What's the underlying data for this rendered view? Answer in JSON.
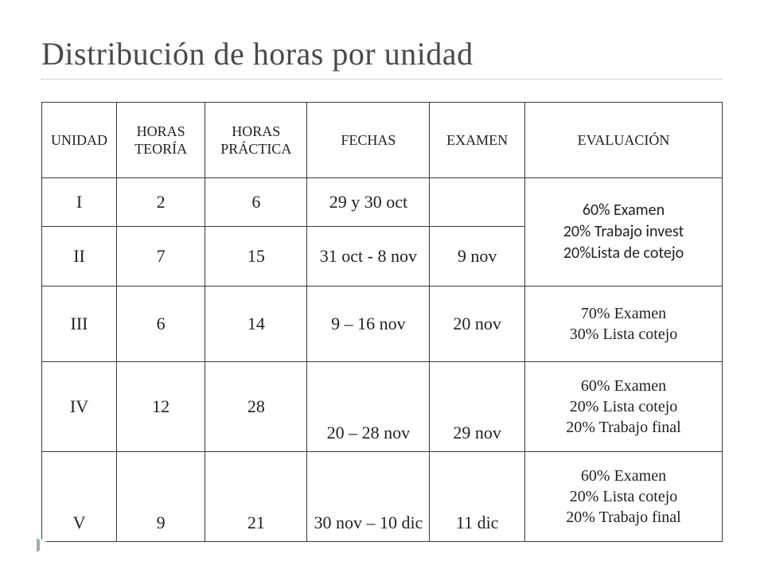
{
  "colors": {
    "text": "#4a4a4a",
    "cell_text": "#222222",
    "border": "#3a3a3a",
    "rule": "#a8a8a8",
    "arrow": "#9bb0b5",
    "background": "#ffffff"
  },
  "typography": {
    "title_fontsize_pt": 30,
    "header_fontsize_pt": 14,
    "body_fontsize_pt": 17,
    "eval_fontsize_pt": 15,
    "title_family": "Georgia serif",
    "alt_family": "Calibri sans-serif"
  },
  "title": "Distribución de horas por unidad",
  "table": {
    "columns": [
      "UNIDAD",
      "HORAS TEORÍA",
      "HORAS PRÁCTICA",
      "FECHAS",
      "EXAMEN",
      "EVALUACIÓN"
    ],
    "col_widths_pct": [
      11,
      13,
      15,
      18,
      14,
      29
    ],
    "rows": [
      {
        "unidad": "I",
        "teoria": "2",
        "practica": "6",
        "fechas": "29 y 30 oct",
        "examen": "",
        "eval_rowspan_with_next": true
      },
      {
        "unidad": "II",
        "teoria": "7",
        "practica": "15",
        "fechas": "31 oct  - 8 nov",
        "examen": "9 nov"
      },
      {
        "unidad": "III",
        "teoria": "6",
        "practica": "14",
        "fechas": "9 – 16 nov",
        "examen": "20 nov"
      },
      {
        "unidad": "IV",
        "teoria": "12",
        "practica": "28",
        "fechas": "20 – 28 nov",
        "examen": "29 nov"
      },
      {
        "unidad": "V",
        "teoria": "9",
        "practica": "21",
        "fechas": "30 nov – 10 dic",
        "examen": "11 dic"
      }
    ],
    "eval": {
      "row12_alt_font": true,
      "row12": [
        "60% Examen",
        "20% Trabajo invest",
        "20%Lista de cotejo"
      ],
      "row3": [
        "70% Examen",
        "30% Lista cotejo"
      ],
      "row4": [
        "60% Examen",
        "20%  Lista cotejo",
        "20% Trabajo final"
      ],
      "row5": [
        "60% Examen",
        "20%  Lista cotejo",
        "20% Trabajo final"
      ]
    }
  }
}
